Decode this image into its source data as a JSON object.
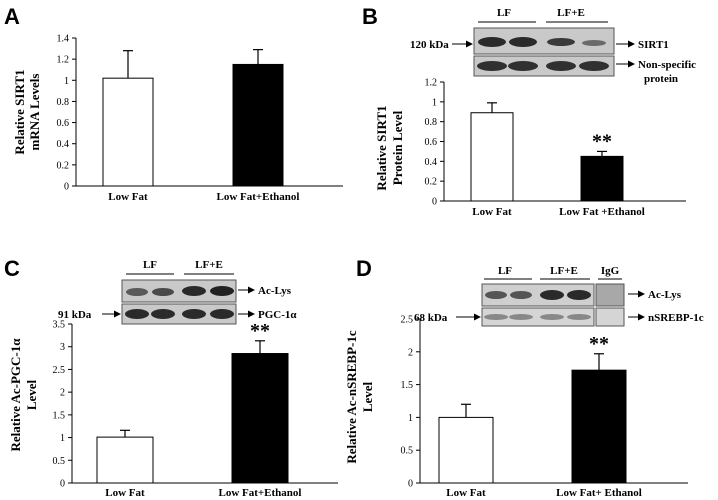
{
  "panels": [
    {
      "letter": "A",
      "ylabel": [
        "Relative SIRT1",
        "mRNA Levels"
      ],
      "blot": null
    },
    {
      "letter": "B",
      "ylabel": [
        "Relative SIRT1",
        "Protein Level"
      ],
      "blot": {
        "groups": [
          "LF",
          "LF+E"
        ],
        "kda": "120 kDa",
        "right_labels": [
          "SIRT1",
          "Non-specific",
          "protein"
        ]
      }
    },
    {
      "letter": "C",
      "ylabel": [
        "Relative Ac-PGC-1α",
        "Level"
      ],
      "blot": {
        "groups": [
          "LF",
          "LF+E"
        ],
        "kda": "91 kDa",
        "right_labels": [
          "Ac-Lys",
          "PGC-1α"
        ]
      }
    },
    {
      "letter": "D",
      "ylabel": [
        "Relative Ac-nSREBP-1c",
        "Level"
      ],
      "blot": {
        "groups": [
          "LF",
          "LF+E",
          "IgG"
        ],
        "kda": "68 kDa",
        "right_labels": [
          "Ac-Lys",
          "nSREBP-1c"
        ]
      }
    }
  ],
  "colors": {
    "control_bar": "#ffffff",
    "ethanol_bar": "#000000",
    "axis": "#000000",
    "band": "#2a2a2a",
    "blot_bg": "#c9c9c9"
  },
  "chart_data": [
    {
      "type": "bar",
      "panel": "A",
      "categories": [
        "Low Fat",
        "Low Fat+Ethanol"
      ],
      "values": [
        1.02,
        1.15
      ],
      "errors": [
        0.26,
        0.14
      ],
      "ylabel": "Relative SIRT1 mRNA Levels",
      "ylim": [
        0,
        1.4
      ],
      "yticks": [
        "0",
        "0.2",
        "0.4",
        "0.6",
        "0.8",
        "1",
        "1.2",
        "1.4"
      ],
      "significance": [
        "",
        ""
      ]
    },
    {
      "type": "bar",
      "panel": "B",
      "categories": [
        "Low Fat",
        "Low Fat +Ethanol"
      ],
      "values": [
        0.89,
        0.45
      ],
      "errors": [
        0.1,
        0.05
      ],
      "ylabel": "Relative SIRT1 Protein Level",
      "ylim": [
        0,
        1.2
      ],
      "yticks": [
        "0",
        "0.2",
        "0.4",
        "0.6",
        "0.8",
        "1",
        "1.2"
      ],
      "significance": [
        "",
        "**"
      ]
    },
    {
      "type": "bar",
      "panel": "C",
      "categories": [
        "Low Fat",
        "Low Fat+Ethanol"
      ],
      "values": [
        1.01,
        2.85
      ],
      "errors": [
        0.15,
        0.28
      ],
      "ylabel": "Relative Ac-PGC-1α Level",
      "ylim": [
        0,
        3.5
      ],
      "yticks": [
        "0",
        "0.5",
        "1",
        "1.5",
        "2",
        "2.5",
        "3",
        "3.5"
      ],
      "significance": [
        "",
        "**"
      ]
    },
    {
      "type": "bar",
      "panel": "D",
      "categories": [
        "Low Fat",
        "Low Fat+ Ethanol"
      ],
      "values": [
        1.0,
        1.72
      ],
      "errors": [
        0.2,
        0.25
      ],
      "ylabel": "Relative Ac-nSREBP-1c Level",
      "ylim": [
        0,
        2.5
      ],
      "yticks": [
        "0",
        "0.5",
        "1",
        "1.5",
        "2",
        "2.5"
      ],
      "significance": [
        "",
        "**"
      ]
    }
  ]
}
